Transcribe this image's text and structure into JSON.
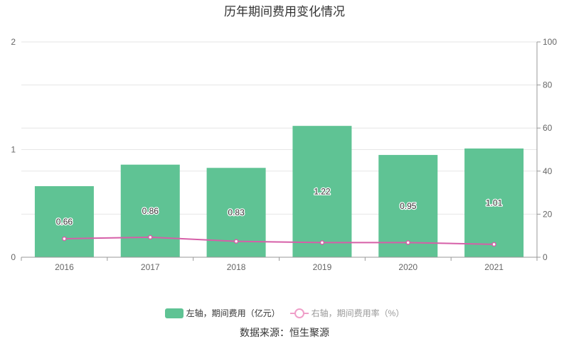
{
  "chart_data": {
    "type": "bar",
    "title": "历年期间费用变化情况",
    "categories": [
      "2016",
      "2017",
      "2018",
      "2019",
      "2020",
      "2021"
    ],
    "series": [
      {
        "name": "左轴，期间费用（亿元）",
        "type": "bar",
        "axis": "left",
        "color": "#5fc394",
        "values": [
          0.66,
          0.86,
          0.83,
          1.22,
          0.95,
          1.01
        ],
        "labels": [
          "0.66",
          "0.86",
          "0.83",
          "1.22",
          "0.95",
          "1.01"
        ]
      },
      {
        "name": "右轴，期间费用率（%）",
        "type": "line",
        "axis": "right",
        "color": "#d65fa8",
        "values": [
          8.6,
          9.3,
          7.4,
          6.8,
          6.8,
          6.0
        ]
      }
    ],
    "left_axis": {
      "range": [
        0,
        2
      ],
      "ticks": [
        "0",
        "1",
        "2"
      ]
    },
    "right_axis": {
      "range": [
        0,
        100
      ],
      "ticks": [
        "0",
        "20",
        "40",
        "60",
        "80",
        "100"
      ]
    },
    "grid": true,
    "legend_position": "bottom"
  },
  "legend": {
    "bar_label": "左轴，期间费用（亿元）",
    "line_label": "右轴，期间费用率（%）"
  },
  "source_note": "数据来源：恒生聚源"
}
